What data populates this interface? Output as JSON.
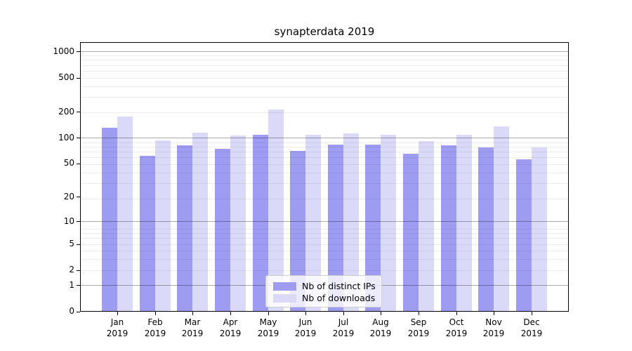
{
  "chart_data": {
    "type": "bar",
    "title": "synapterdata 2019",
    "categories": [
      "Jan",
      "Feb",
      "Mar",
      "Apr",
      "May",
      "Jun",
      "Jul",
      "Aug",
      "Sep",
      "Oct",
      "Nov",
      "Dec"
    ],
    "category_year": "2019",
    "series": [
      {
        "name": "Nb of distinct IPs",
        "color": "#9e9cf0",
        "values": [
          132,
          62,
          81,
          75,
          108,
          70,
          84,
          84,
          65,
          81,
          77,
          56
        ]
      },
      {
        "name": "Nb of downloads",
        "color": "#dadaf8",
        "values": [
          178,
          93,
          114,
          107,
          212,
          108,
          113,
          108,
          92,
          109,
          135,
          77
        ]
      }
    ],
    "xlabel": "",
    "ylabel": "",
    "y_scale": "log1p",
    "y_ticks": [
      0,
      1,
      2,
      5,
      10,
      20,
      50,
      100,
      200,
      500,
      1000
    ],
    "ylim": [
      0,
      1280
    ],
    "grid": true,
    "legend_position": "lower-center",
    "colors": {
      "major_grid": "rgba(0,0,0,0.33)",
      "minor_grid": "rgba(0,0,0,0.07)",
      "spine": "#000000",
      "text": "#000000",
      "legend_border": "#cccccc",
      "legend_bg": "rgba(255,255,255,0.8)"
    }
  }
}
